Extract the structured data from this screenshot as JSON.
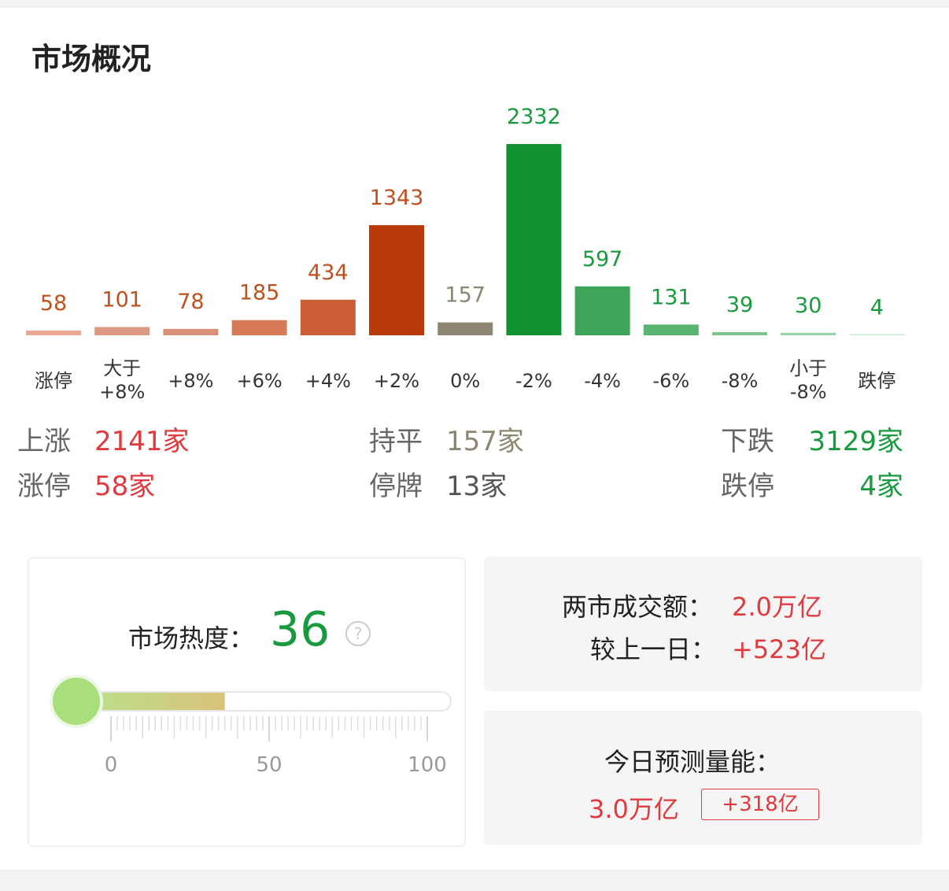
{
  "header": {
    "title": "市场概况"
  },
  "chart_data": {
    "type": "bar",
    "categories": [
      "涨停",
      "大于\n+8%",
      "+8%",
      "+6%",
      "+4%",
      "+2%",
      "0%",
      "-2%",
      "-4%",
      "-6%",
      "-8%",
      "小于\n-8%",
      "跌停"
    ],
    "values": [
      58,
      101,
      78,
      185,
      434,
      1343,
      157,
      2332,
      597,
      131,
      39,
      30,
      4
    ],
    "colors": [
      "#eaa791",
      "#dd9a82",
      "#d98f78",
      "#d77a56",
      "#cb5e35",
      "#b83a08",
      "#8c8672",
      "#12922f",
      "#3ea558",
      "#58b46f",
      "#7dc590",
      "#98d1a8",
      "#c6e7cf"
    ],
    "label_colors": [
      "#c2501e",
      "#c2501e",
      "#c2501e",
      "#c2501e",
      "#c2501e",
      "#c2501e",
      "#8c8672",
      "#1a9a3e",
      "#1a9a3e",
      "#1a9a3e",
      "#1a9a3e",
      "#1a9a3e",
      "#1a9a3e"
    ]
  },
  "summary": [
    [
      {
        "label": "上涨",
        "value": "2141家",
        "color": "#e0393e"
      },
      {
        "label": "持平",
        "value": "157家",
        "color": "#8c8672"
      },
      {
        "label": "下跌",
        "value": "3129家",
        "color": "#1a9a3e"
      }
    ],
    [
      {
        "label": "涨停",
        "value": "58家",
        "color": "#e0393e"
      },
      {
        "label": "停牌",
        "value": "13家",
        "color": "#555555"
      },
      {
        "label": "跌停",
        "value": "4家",
        "color": "#1a9a3e"
      }
    ]
  ],
  "heat": {
    "title": "市场热度：",
    "value": 36,
    "help": "?",
    "scale": [
      0,
      50,
      100
    ]
  },
  "turnover": {
    "label": "两市成交额：",
    "value": "2.0万亿",
    "change_label": "较上一日：",
    "change": "+523亿"
  },
  "forecast": {
    "label": "今日预测量能：",
    "value": "3.0万亿",
    "change": "+318亿"
  }
}
